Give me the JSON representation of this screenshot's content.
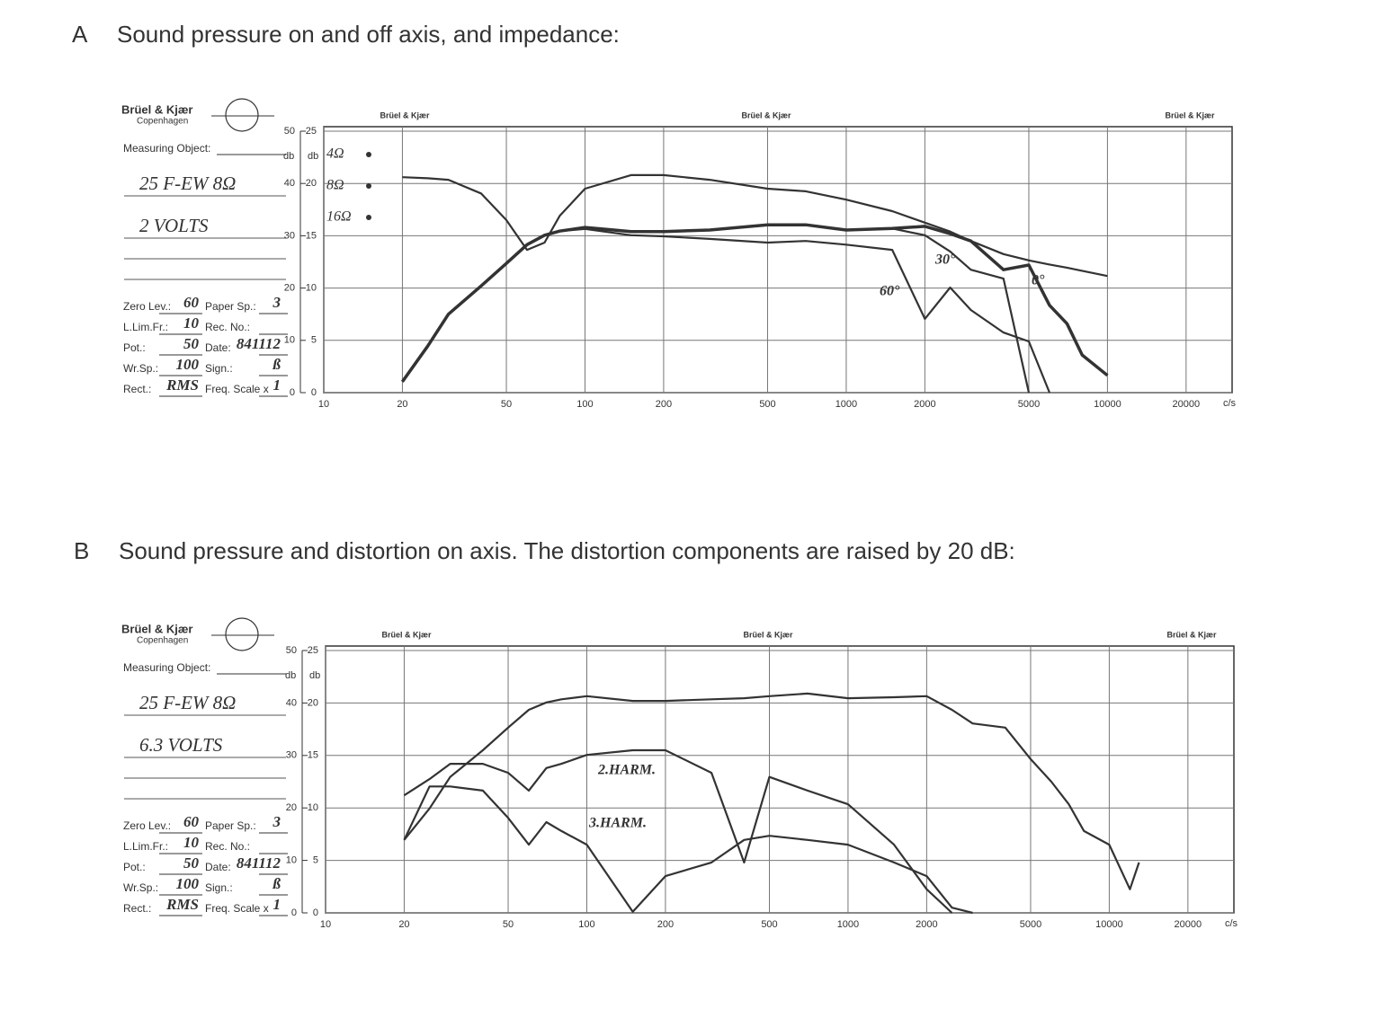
{
  "chart_data": [
    {
      "type": "line",
      "panel": "A",
      "title": "Sound pressure on and off axis, and impedance:",
      "form": {
        "brand": "Brüel & Kjær",
        "city": "Copenhagen",
        "object_label": "Measuring Object:",
        "object_lines": [
          "25 F-EW 8Ω",
          "2 VOLTS"
        ],
        "rows": [
          [
            {
              "label": "Zero Lev.:",
              "value": "60"
            },
            {
              "label": "Paper Sp.:",
              "value": "3"
            }
          ],
          [
            {
              "label": "L.Lim.Fr.:",
              "value": "10"
            },
            {
              "label": "Rec. No.:"
            }
          ],
          [
            {
              "label": "Pot.:",
              "value": "50"
            },
            {
              "label": "Date:",
              "value": "841112"
            }
          ],
          [
            {
              "label": "Wr.Sp.:",
              "value": "100"
            },
            {
              "label": "Sign.:",
              "value": "ß"
            }
          ],
          [
            {
              "label": "Rect.:",
              "value": "RMS"
            },
            {
              "label": "Freq. Scale x",
              "value": "1"
            }
          ]
        ]
      },
      "header_marks": [
        "Brüel & Kjær",
        "Brüel & Kjær",
        "Brüel & Kjær"
      ],
      "annotations": [
        "4Ω",
        "8Ω",
        "16Ω"
      ],
      "xlabel": "c/s",
      "ylabel": "db",
      "y2label": "db",
      "xscale": "log",
      "xlim": [
        10,
        30000
      ],
      "xticks": [
        10,
        20,
        50,
        100,
        200,
        500,
        1000,
        2000,
        5000,
        10000,
        20000
      ],
      "ylim": [
        0,
        50
      ],
      "yticks": [
        0,
        10,
        20,
        30,
        40,
        50
      ],
      "y2lim": [
        0,
        25
      ],
      "y2ticks": [
        0,
        5,
        10,
        15,
        20,
        25
      ],
      "grid": true,
      "x": [
        20,
        25,
        30,
        40,
        50,
        60,
        70,
        80,
        100,
        150,
        200,
        300,
        500,
        700,
        1000,
        1500,
        2000,
        2500,
        3000,
        4000,
        5000,
        6000,
        7000,
        8000,
        10000
      ],
      "series": [
        {
          "name": "0°",
          "color": "#333333",
          "values": [
            2.1,
            8.9,
            15,
            20.4,
            24.7,
            28.3,
            30.1,
            30.9,
            31.6,
            30.8,
            30.8,
            31.1,
            32.1,
            32.1,
            31.1,
            31.4,
            31.8,
            30.4,
            29,
            23.5,
            24.4,
            16.7,
            13.2,
            7.2,
            3.3
          ]
        },
        {
          "name": "30°",
          "color": "#333333",
          "values": [
            2.1,
            8.9,
            15,
            20.4,
            24.7,
            28.3,
            30.1,
            30.9,
            31.6,
            30.8,
            30.8,
            31.1,
            32.1,
            32.1,
            31.1,
            31.4,
            30.1,
            27,
            23.5,
            21.8,
            0,
            null,
            null,
            null,
            null
          ]
        },
        {
          "name": "60°",
          "color": "#333333",
          "values": [
            2.1,
            8.9,
            15,
            20.4,
            24.7,
            28.3,
            30.1,
            30.9,
            31.3,
            30.1,
            29.9,
            29.4,
            28.7,
            29,
            28.3,
            27.3,
            14.1,
            20.1,
            15.8,
            11.5,
            9.8,
            0,
            null,
            null,
            null
          ]
        },
        {
          "color": "#333333",
          "values": [
            41.2,
            41,
            40.7,
            38.1,
            33,
            27.3,
            28.7,
            33.8,
            39,
            41.6,
            41.6,
            40.7,
            39,
            38.5,
            36.9,
            34.7,
            32.5,
            30.8,
            29,
            26.5,
            25.3,
            24.5,
            23.9,
            23.3,
            22.3
          ]
        }
      ]
    },
    {
      "type": "line",
      "panel": "B",
      "title": "Sound pressure and distortion on axis. The distortion components are raised by 20 dB:",
      "form": {
        "brand": "Brüel & Kjær",
        "city": "Copenhagen",
        "object_label": "Measuring Object:",
        "object_lines": [
          "25 F-EW 8Ω",
          "6.3 VOLTS"
        ],
        "rows": [
          [
            {
              "label": "Zero Lev.:",
              "value": "60"
            },
            {
              "label": "Paper Sp.:",
              "value": "3"
            }
          ],
          [
            {
              "label": "L.Lim.Fr.:",
              "value": "10"
            },
            {
              "label": "Rec. No.:"
            }
          ],
          [
            {
              "label": "Pot.:",
              "value": "50"
            },
            {
              "label": "Date:",
              "value": "841112"
            }
          ],
          [
            {
              "label": "Wr.Sp.:",
              "value": "100"
            },
            {
              "label": "Sign.:",
              "value": "ß"
            }
          ],
          [
            {
              "label": "Rect.:",
              "value": "RMS"
            },
            {
              "label": "Freq. Scale x",
              "value": "1"
            }
          ]
        ]
      },
      "header_marks": [
        "Brüel & Kjær",
        "Brüel & Kjær",
        "Brüel & Kjær"
      ],
      "xlabel": "c/s",
      "ylabel": "db",
      "y2label": "db",
      "xscale": "log",
      "xlim": [
        10,
        30000
      ],
      "xticks": [
        10,
        20,
        50,
        100,
        200,
        500,
        1000,
        2000,
        5000,
        10000,
        20000
      ],
      "ylim": [
        0,
        50
      ],
      "yticks": [
        0,
        10,
        20,
        30,
        40,
        50
      ],
      "y2lim": [
        0,
        25
      ],
      "y2ticks": [
        0,
        5,
        10,
        15,
        20,
        25
      ],
      "grid": true,
      "x": [
        20,
        25,
        30,
        40,
        50,
        60,
        70,
        80,
        100,
        150,
        200,
        300,
        400,
        500,
        700,
        1000,
        1500,
        2000,
        2500,
        3000,
        4000,
        5000,
        6000,
        7000,
        8000,
        10000,
        12000,
        13000
      ],
      "series": [
        {
          "color": "#333333",
          "values": [
            13.9,
            19.9,
            25.9,
            31,
            35.3,
            38.7,
            40.1,
            40.7,
            41.3,
            40.4,
            40.4,
            40.7,
            40.9,
            41.3,
            41.8,
            40.9,
            41.1,
            41.3,
            38.7,
            36.1,
            35.3,
            29.3,
            25,
            20.7,
            15.6,
            13,
            4.5,
            9.6
          ]
        },
        {
          "name": "2.HARM.",
          "color": "#333333",
          "values": [
            22.4,
            25.5,
            28.4,
            28.4,
            26.7,
            23.3,
            27.6,
            28.4,
            30.1,
            31,
            31,
            26.7,
            9.6,
            25.9,
            23.3,
            20.7,
            13,
            4.5,
            0,
            null,
            null,
            null,
            null,
            null,
            null,
            null,
            null,
            null
          ]
        },
        {
          "name": "3.HARM.",
          "color": "#333333",
          "values": [
            13.9,
            24.1,
            24.1,
            23.3,
            18.1,
            13,
            17.3,
            15.6,
            13,
            0.2,
            7,
            9.6,
            13.9,
            14.7,
            13.9,
            13,
            9.6,
            7,
            1,
            0,
            null,
            null,
            null,
            null,
            null,
            null,
            null,
            null
          ]
        }
      ]
    }
  ]
}
